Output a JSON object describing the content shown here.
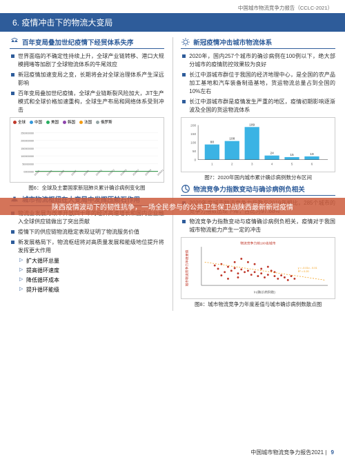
{
  "header": {
    "report": "中国城市物流竞争力报告（CCLC-2021）"
  },
  "title": "6. 疫情冲击下的物流大变局",
  "left": {
    "s1": {
      "title": "百年变局叠加世纪疫情下经贸体系失序",
      "icon": "scale-icon",
      "bullets": [
        "世界面临的不确定性持续上升，全球产业链转移、港口大规模拥堵等加剧了全球物流体系的牛尾效应",
        "新冠疫情加速变局之变，长期将会对全球治理体系产生深远影响",
        "百年变局叠加世纪疫情，全球产业链断裂风险加大，JIT生产模式和全球价格加速重构，全球生产布局和网络体系受到冲击"
      ]
    },
    "chart1": {
      "caption": "图6：全球及主要国家新冠肺炎累计确诊病例变化图",
      "series": [
        {
          "name": "全球",
          "color": "#c0392b"
        },
        {
          "name": "中国",
          "color": "#3498db"
        },
        {
          "name": "美国",
          "color": "#27ae60"
        },
        {
          "name": "韩国",
          "color": "#8e44ad"
        },
        {
          "name": "法国",
          "color": "#f39c12"
        },
        {
          "name": "俄罗斯",
          "color": "#95a5a6"
        }
      ],
      "ymax": 250000000,
      "ytick": 50000000,
      "lines": {
        "全球": [
          0,
          1,
          2,
          3,
          5,
          8,
          12,
          18,
          25,
          35,
          48,
          62,
          78,
          95,
          115,
          135,
          158,
          182,
          205,
          228,
          248
        ],
        "美国": [
          0,
          0,
          0,
          0,
          1,
          2,
          4,
          6,
          9,
          13,
          18,
          23,
          28,
          33,
          38,
          42,
          46,
          50,
          54,
          58,
          62
        ]
      }
    },
    "s2": {
      "title": "城市物流枢纽在大变局中发挥压舱石作用",
      "icon": "ship-icon",
      "bullets": [
        "物流业发展为改革开放四十年的经济高速增长和国内企业融入全球供应链做出了突出贡献",
        "疫情下的供应链物流稳定表现证明了物流服务价值",
        "新发展格局下，物流枢纽将对高质量发展和能级地位提升将发挥更大作用"
      ],
      "subs": [
        "扩大循环总量",
        "提高循环速度",
        "降低循环成本",
        "提升循环能级"
      ]
    }
  },
  "right": {
    "s1": {
      "title": "新冠疫情冲击城市物流体系",
      "icon": "virus-icon",
      "bullets": [
        "2020年，国内257个城市的确诊病例在100例以下，绝大部分城市的疫情防控效果较为良好",
        "长江中游城市群位于我国的经济地理中心，是全国的农产品加工基地和汽车装备制造基地，货运物流总量占到全国的10%左右",
        "长江中游城市群是疫情发生严重的地区，疫情初期影响逐渐波及全国的货运物流体系"
      ]
    },
    "chart2": {
      "caption": "图7：2020年国内城市累计确诊病例数分布区间",
      "categories": [
        "1",
        "2",
        "3",
        "4",
        "5",
        "6"
      ],
      "values": [
        88,
        108,
        189,
        24,
        15,
        19
      ],
      "color": "#3bb3e4",
      "ymax": 200
    },
    "s2": {
      "title": "物流竞争力指数变动与确诊病例负相关",
      "icon": "chart-icon",
      "bullets": [
        "2020年度城市物流竞争力指数与2019年相比，285个城市的竞争力指数出现下降，占比为97.68%",
        "物流竞争力指数变动与疫情确诊病例负相关，疫情对于我国城市物流能力产生一定的冲击"
      ]
    },
    "chart3": {
      "caption": "图8：城市物流竞争力年度差值与城市确诊病例数散点图",
      "title": "物流竞争力前100名城市",
      "xlabel": "ln(确诊病例数)",
      "ylabel": "城市物流竞争力年度差值",
      "fit": "y = -0.01x - 0.01\\nR² = 0.20",
      "color": "#c0392b"
    }
  },
  "banner": "陕西疫情波动下的韧性抗争，一场全民参与的公共卫生保卫战陕西最新新冠疫情",
  "footer": {
    "text": "中国城市物流竞争力报告2021",
    "page": "9"
  }
}
